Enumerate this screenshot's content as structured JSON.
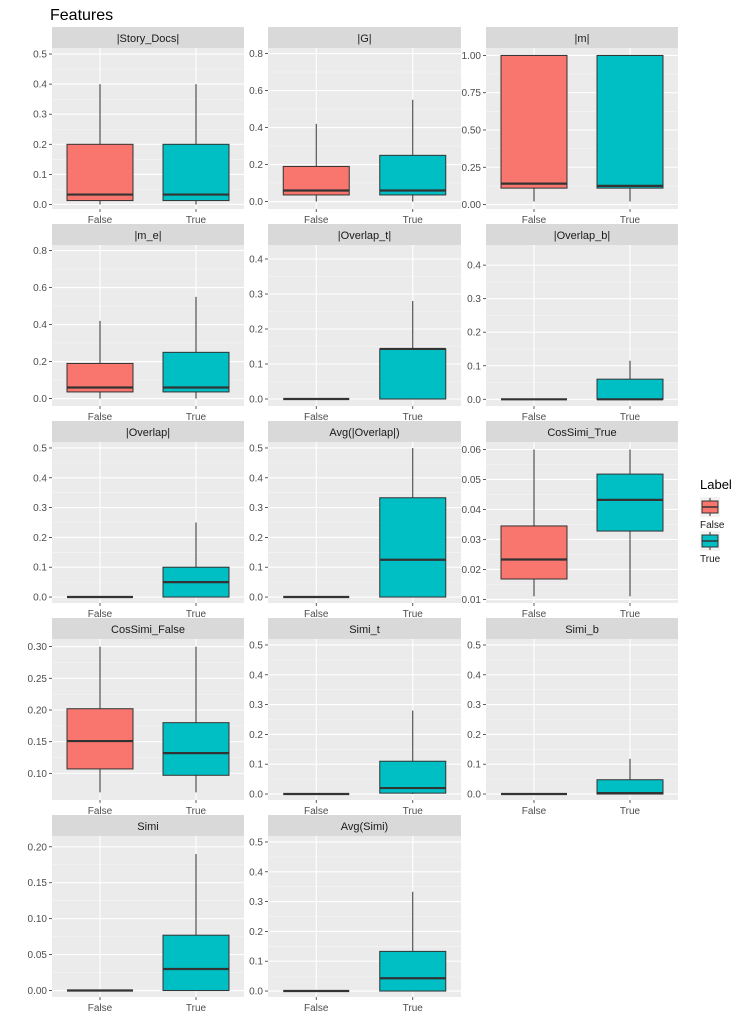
{
  "title": "Features",
  "legend": {
    "title": "Label",
    "position": "right",
    "entries": [
      {
        "label": "False",
        "color": "#F8766D"
      },
      {
        "label": "True",
        "color": "#00BFC4"
      }
    ]
  },
  "colors": {
    "panel_bg": "#EBEBEB",
    "grid_major": "#FFFFFF",
    "strip_bg": "#D9D9D9",
    "box_outline": "#333333",
    "axis_text": "#4D4D4D",
    "false_fill": "#F8766D",
    "true_fill": "#00BFC4"
  },
  "chart_data": [
    {
      "type": "box",
      "title": "|Story_Docs|",
      "categories": [
        "False",
        "True"
      ],
      "ylim": [
        -0.015,
        0.52
      ],
      "ticks": [
        0.0,
        0.1,
        0.2,
        0.3,
        0.4,
        0.5
      ],
      "tick_labels": [
        "0.0",
        "0.1",
        "0.2",
        "0.3",
        "0.4",
        "0.5"
      ],
      "boxes": [
        {
          "min": 0.0,
          "q1": 0.013,
          "median": 0.033,
          "q3": 0.2,
          "max": 0.4
        },
        {
          "min": 0.0,
          "q1": 0.013,
          "median": 0.033,
          "q3": 0.2,
          "max": 0.4
        }
      ]
    },
    {
      "type": "box",
      "title": "|G|",
      "categories": [
        "False",
        "True"
      ],
      "ylim": [
        -0.04,
        0.83
      ],
      "ticks": [
        0.0,
        0.2,
        0.4,
        0.6,
        0.8
      ],
      "tick_labels": [
        "0.0",
        "0.2",
        "0.4",
        "0.6",
        "0.8"
      ],
      "boxes": [
        {
          "min": 0.0,
          "q1": 0.036,
          "median": 0.06,
          "q3": 0.19,
          "max": 0.42
        },
        {
          "min": 0.0,
          "q1": 0.036,
          "median": 0.06,
          "q3": 0.25,
          "max": 0.55
        }
      ]
    },
    {
      "type": "box",
      "title": "|m|",
      "categories": [
        "False",
        "True"
      ],
      "ylim": [
        -0.03,
        1.05
      ],
      "ticks": [
        0.0,
        0.25,
        0.5,
        0.75,
        1.0
      ],
      "tick_labels": [
        "0.00",
        "0.25",
        "0.50",
        "0.75",
        "1.00"
      ],
      "boxes": [
        {
          "min": 0.02,
          "q1": 0.11,
          "median": 0.14,
          "q3": 1.0,
          "max": 1.0
        },
        {
          "min": 0.02,
          "q1": 0.11,
          "median": 0.125,
          "q3": 1.0,
          "max": 1.0
        }
      ]
    },
    {
      "type": "box",
      "title": "|m_e|",
      "categories": [
        "False",
        "True"
      ],
      "ylim": [
        -0.04,
        0.83
      ],
      "ticks": [
        0.0,
        0.2,
        0.4,
        0.6,
        0.8
      ],
      "tick_labels": [
        "0.0",
        "0.2",
        "0.4",
        "0.6",
        "0.8"
      ],
      "boxes": [
        {
          "min": 0.0,
          "q1": 0.036,
          "median": 0.06,
          "q3": 0.19,
          "max": 0.42
        },
        {
          "min": 0.0,
          "q1": 0.036,
          "median": 0.06,
          "q3": 0.25,
          "max": 0.55
        }
      ]
    },
    {
      "type": "box",
      "title": "|Overlap_t|",
      "categories": [
        "False",
        "True"
      ],
      "ylim": [
        -0.02,
        0.44
      ],
      "ticks": [
        0.0,
        0.1,
        0.2,
        0.3,
        0.4
      ],
      "tick_labels": [
        "0.0",
        "0.1",
        "0.2",
        "0.3",
        "0.4"
      ],
      "boxes": [
        {
          "min": 0.0,
          "q1": 0.0,
          "median": 0.0,
          "q3": 0.0,
          "max": 0.0
        },
        {
          "min": 0.0,
          "q1": 0.0,
          "median": 0.143,
          "q3": 0.143,
          "max": 0.28
        }
      ]
    },
    {
      "type": "box",
      "title": "|Overlap_b|",
      "categories": [
        "False",
        "True"
      ],
      "ylim": [
        -0.02,
        0.46
      ],
      "ticks": [
        0.0,
        0.1,
        0.2,
        0.3,
        0.4
      ],
      "tick_labels": [
        "0.0",
        "0.1",
        "0.2",
        "0.3",
        "0.4"
      ],
      "boxes": [
        {
          "min": 0.0,
          "q1": 0.0,
          "median": 0.0,
          "q3": 0.0,
          "max": 0.0
        },
        {
          "min": 0.0,
          "q1": 0.0,
          "median": 0.0,
          "q3": 0.06,
          "max": 0.115
        }
      ]
    },
    {
      "type": "box",
      "title": "|Overlap|",
      "categories": [
        "False",
        "True"
      ],
      "ylim": [
        -0.02,
        0.52
      ],
      "ticks": [
        0.0,
        0.1,
        0.2,
        0.3,
        0.4,
        0.5
      ],
      "tick_labels": [
        "0.0",
        "0.1",
        "0.2",
        "0.3",
        "0.4",
        "0.5"
      ],
      "boxes": [
        {
          "min": 0.0,
          "q1": 0.0,
          "median": 0.0,
          "q3": 0.0,
          "max": 0.0
        },
        {
          "min": 0.0,
          "q1": 0.0,
          "median": 0.05,
          "q3": 0.1,
          "max": 0.25
        }
      ]
    },
    {
      "type": "box",
      "title": "Avg(|Overlap|)",
      "categories": [
        "False",
        "True"
      ],
      "ylim": [
        -0.02,
        0.52
      ],
      "ticks": [
        0.0,
        0.1,
        0.2,
        0.3,
        0.4,
        0.5
      ],
      "tick_labels": [
        "0.0",
        "0.1",
        "0.2",
        "0.3",
        "0.4",
        "0.5"
      ],
      "boxes": [
        {
          "min": 0.0,
          "q1": 0.0,
          "median": 0.0,
          "q3": 0.0,
          "max": 0.0
        },
        {
          "min": 0.0,
          "q1": 0.0,
          "median": 0.125,
          "q3": 0.333,
          "max": 0.5
        }
      ]
    },
    {
      "type": "box",
      "title": "CosSimi_True",
      "categories": [
        "False",
        "True"
      ],
      "ylim": [
        0.0088,
        0.0625
      ],
      "ticks": [
        0.01,
        0.02,
        0.03,
        0.04,
        0.05,
        0.06
      ],
      "tick_labels": [
        "0.01",
        "0.02",
        "0.03",
        "0.04",
        "0.05",
        "0.06"
      ],
      "boxes": [
        {
          "min": 0.011,
          "q1": 0.0168,
          "median": 0.0233,
          "q3": 0.0345,
          "max": 0.06
        },
        {
          "min": 0.011,
          "q1": 0.0328,
          "median": 0.0432,
          "q3": 0.0518,
          "max": 0.06
        }
      ]
    },
    {
      "type": "box",
      "title": "CosSimi_False",
      "categories": [
        "False",
        "True"
      ],
      "ylim": [
        0.058,
        0.312
      ],
      "ticks": [
        0.1,
        0.15,
        0.2,
        0.25,
        0.3
      ],
      "tick_labels": [
        "0.10",
        "0.15",
        "0.20",
        "0.25",
        "0.30"
      ],
      "boxes": [
        {
          "min": 0.07,
          "q1": 0.107,
          "median": 0.151,
          "q3": 0.202,
          "max": 0.3
        },
        {
          "min": 0.07,
          "q1": 0.097,
          "median": 0.132,
          "q3": 0.18,
          "max": 0.3
        }
      ]
    },
    {
      "type": "box",
      "title": "Simi_t",
      "categories": [
        "False",
        "True"
      ],
      "ylim": [
        -0.02,
        0.52
      ],
      "ticks": [
        0.0,
        0.1,
        0.2,
        0.3,
        0.4,
        0.5
      ],
      "tick_labels": [
        "0.0",
        "0.1",
        "0.2",
        "0.3",
        "0.4",
        "0.5"
      ],
      "boxes": [
        {
          "min": 0.0,
          "q1": 0.0,
          "median": 0.0,
          "q3": 0.0,
          "max": 0.0
        },
        {
          "min": 0.0,
          "q1": 0.003,
          "median": 0.02,
          "q3": 0.11,
          "max": 0.28
        }
      ]
    },
    {
      "type": "box",
      "title": "Simi_b",
      "categories": [
        "False",
        "True"
      ],
      "ylim": [
        -0.02,
        0.52
      ],
      "ticks": [
        0.0,
        0.1,
        0.2,
        0.3,
        0.4,
        0.5
      ],
      "tick_labels": [
        "0.0",
        "0.1",
        "0.2",
        "0.3",
        "0.4",
        "0.5"
      ],
      "boxes": [
        {
          "min": 0.0,
          "q1": 0.0,
          "median": 0.0,
          "q3": 0.0,
          "max": 0.0
        },
        {
          "min": 0.0,
          "q1": 0.0,
          "median": 0.003,
          "q3": 0.048,
          "max": 0.118
        }
      ]
    },
    {
      "type": "box",
      "title": "Simi",
      "categories": [
        "False",
        "True"
      ],
      "ylim": [
        -0.009,
        0.215
      ],
      "ticks": [
        0.0,
        0.05,
        0.1,
        0.15,
        0.2
      ],
      "tick_labels": [
        "0.00",
        "0.05",
        "0.10",
        "0.15",
        "0.20"
      ],
      "boxes": [
        {
          "min": 0.0,
          "q1": 0.0,
          "median": 0.0,
          "q3": 0.0,
          "max": 0.0
        },
        {
          "min": 0.0,
          "q1": 0.0,
          "median": 0.03,
          "q3": 0.077,
          "max": 0.19
        }
      ]
    },
    {
      "type": "box",
      "title": "Avg(Simi)",
      "categories": [
        "False",
        "True"
      ],
      "ylim": [
        -0.02,
        0.52
      ],
      "ticks": [
        0.0,
        0.1,
        0.2,
        0.3,
        0.4,
        0.5
      ],
      "tick_labels": [
        "0.0",
        "0.1",
        "0.2",
        "0.3",
        "0.4",
        "0.5"
      ],
      "boxes": [
        {
          "min": 0.0,
          "q1": 0.0,
          "median": 0.0,
          "q3": 0.0,
          "max": 0.0
        },
        {
          "min": 0.0,
          "q1": 0.0,
          "median": 0.043,
          "q3": 0.133,
          "max": 0.333
        }
      ]
    }
  ]
}
